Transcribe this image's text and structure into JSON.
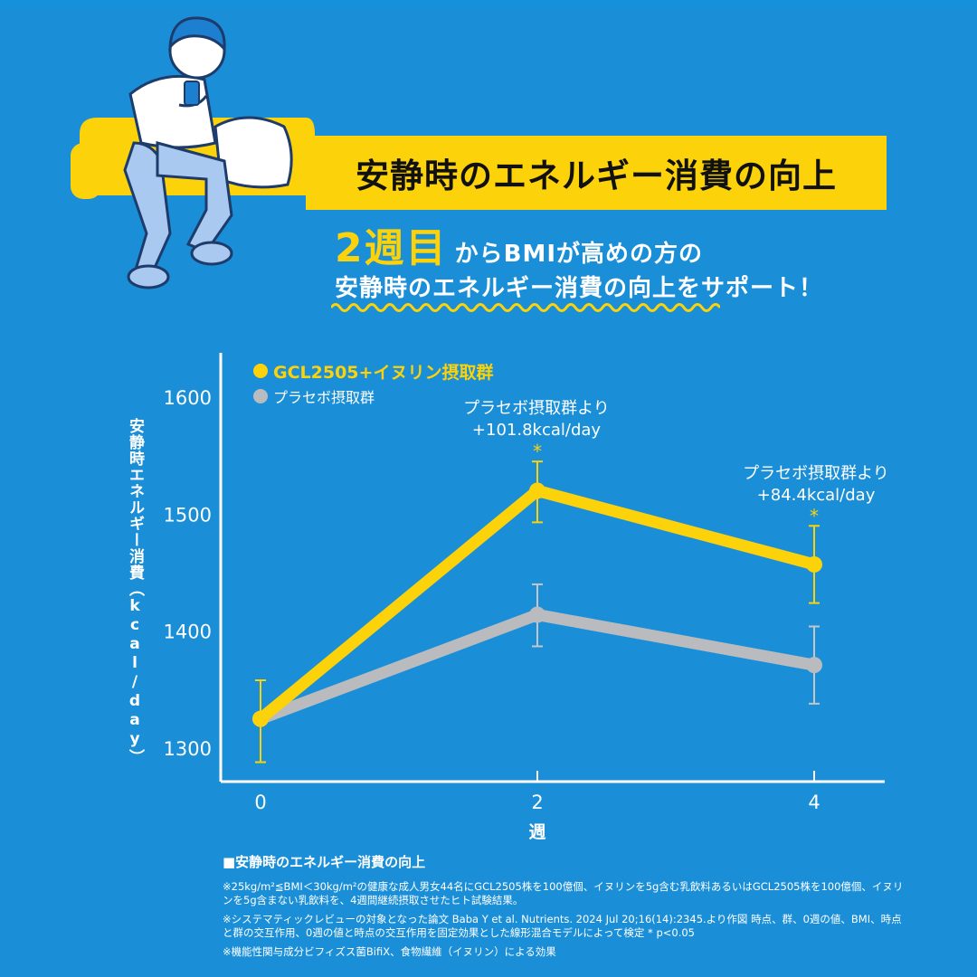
{
  "header": {
    "banner_title": "安静時のエネルギー消費の向上",
    "headline_big": "2週目",
    "headline_rest1": "からBMIが高めの方の",
    "headline_line2": "安静時のエネルギー消費の向上をサポート！"
  },
  "colors": {
    "background": "#1a8fd8",
    "accent_yellow": "#fcd20a",
    "placebo_gray": "#b9bbbe"
  },
  "chart_data": {
    "type": "line",
    "x": [
      0,
      2,
      4
    ],
    "xlabel": "週",
    "ylabel": "安静時エネルギー消費（kcal/day）",
    "ylim": [
      1270,
      1640
    ],
    "yticks": [
      1300,
      1400,
      1500,
      1600
    ],
    "xticks": [
      "0",
      "2",
      "4"
    ],
    "series": [
      {
        "name": "GCL2505+イヌリン摂取群",
        "values": [
          1325,
          1520,
          1457
        ],
        "err_low": [
          1288,
          1493,
          1424
        ],
        "err_high": [
          1358,
          1545,
          1490
        ],
        "color": "#fcd20a"
      },
      {
        "name": "プラセボ摂取群",
        "values": [
          1325,
          1414,
          1371
        ],
        "err_low": [
          1288,
          1387,
          1338
        ],
        "err_high": [
          1358,
          1440,
          1404
        ],
        "color": "#b9bbbe"
      }
    ],
    "annotations": [
      {
        "x": 2,
        "line1": "プラセボ摂取群より",
        "line2": "+101.8kcal/day",
        "marker": "*"
      },
      {
        "x": 4,
        "line1": "プラセボ摂取群より",
        "line2": "+84.4kcal/day",
        "marker": "*"
      }
    ],
    "grid": false,
    "legend": "top-left"
  },
  "footer": {
    "title": "■安静時のエネルギー消費の向上",
    "note1": "※25kg/m²≦BMI＜30kg/m²の健康な成人男女44名にGCL2505株を100億個、イヌリンを5g含む乳飲料あるいはGCL2505株を100億個、イヌリンを5g含まない乳飲料を、4週間継続摂取させたヒト試験結果。",
    "note2": "※システマティックレビューの対象となった論文 Baba Y et al. Nutrients. 2024 Jul 20;16(14):2345.より作図 時点、群、0週の値、BMI、時点と群の交互作用、0週の値と時点の交互作用を固定効果とした線形混合モデルによって検定 * p<0.05",
    "note3": "※機能性関与成分ビフィズス菌BifiX、食物繊維（イヌリン）による効果"
  }
}
